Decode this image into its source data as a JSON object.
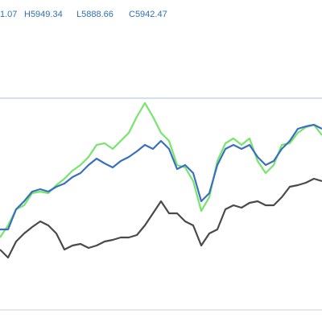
{
  "chart_data": {
    "type": "line",
    "legend_items": [
      "1.07",
      "H5949.34",
      "L5888.66",
      "C5942.47"
    ],
    "legend_color": "#2e6fb5",
    "ylim": [
      0,
      400
    ],
    "price_line": 278,
    "price_line_color": "#9cc0e6",
    "series": [
      {
        "color": "#77e56b",
        "values": [
          105,
          120,
          140,
          145,
          160,
          162,
          160,
          170,
          178,
          188,
          195,
          205,
          220,
          222,
          215,
          225,
          235,
          255,
          272,
          255,
          235,
          225,
          195,
          192,
          175,
          138,
          155,
          200,
          222,
          228,
          220,
          228,
          200,
          185,
          195,
          220,
          222,
          235,
          242,
          245,
          232
        ]
      },
      {
        "color": "#3a6fbf",
        "values": [
          115,
          115,
          140,
          150,
          162,
          165,
          162,
          168,
          172,
          180,
          185,
          195,
          203,
          197,
          192,
          200,
          205,
          212,
          220,
          215,
          225,
          215,
          190,
          195,
          185,
          150,
          160,
          195,
          215,
          220,
          215,
          220,
          205,
          195,
          200,
          215,
          225,
          240,
          243,
          245,
          240
        ]
      },
      {
        "color": "#4a4a4a",
        "values": [
          90,
          80,
          100,
          110,
          118,
          125,
          120,
          110,
          90,
          95,
          97,
          92,
          95,
          100,
          102,
          105,
          105,
          108,
          120,
          135,
          150,
          135,
          135,
          125,
          120,
          95,
          110,
          115,
          140,
          145,
          142,
          148,
          150,
          145,
          145,
          155,
          168,
          170,
          173,
          178,
          175
        ]
      }
    ]
  }
}
